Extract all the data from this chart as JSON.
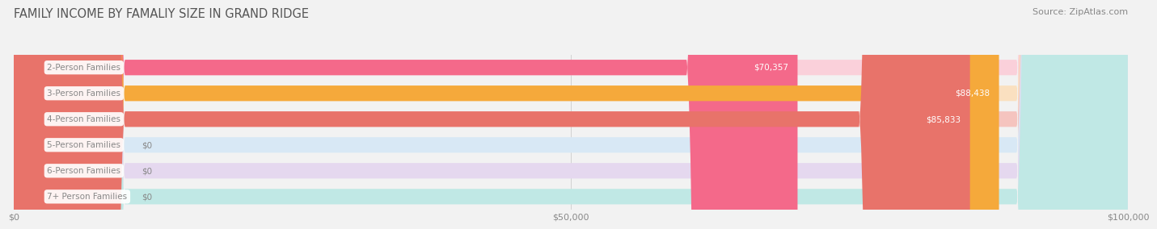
{
  "title": "FAMILY INCOME BY FAMALIY SIZE IN GRAND RIDGE",
  "source": "Source: ZipAtlas.com",
  "categories": [
    "2-Person Families",
    "3-Person Families",
    "4-Person Families",
    "5-Person Families",
    "6-Person Families",
    "7+ Person Families"
  ],
  "values": [
    70357,
    88438,
    85833,
    0,
    0,
    0
  ],
  "bar_colors": [
    "#F4698A",
    "#F5A93B",
    "#E8736A",
    "#A8C4E0",
    "#C9A8D4",
    "#72C9C4"
  ],
  "bar_bg_colors": [
    "#FAD0DA",
    "#FAE0C0",
    "#F5C4BF",
    "#D8E8F5",
    "#E5D8EF",
    "#C0E8E5"
  ],
  "label_text_color": "#888888",
  "xlim": [
    0,
    100000
  ],
  "xticks": [
    0,
    50000,
    100000
  ],
  "xtick_labels": [
    "$0",
    "$50,000",
    "$100,000"
  ],
  "background_color": "#F2F2F2",
  "title_fontsize": 10.5,
  "source_fontsize": 8,
  "tick_fontsize": 8,
  "label_fontsize": 7.5,
  "value_fontsize": 7.5
}
